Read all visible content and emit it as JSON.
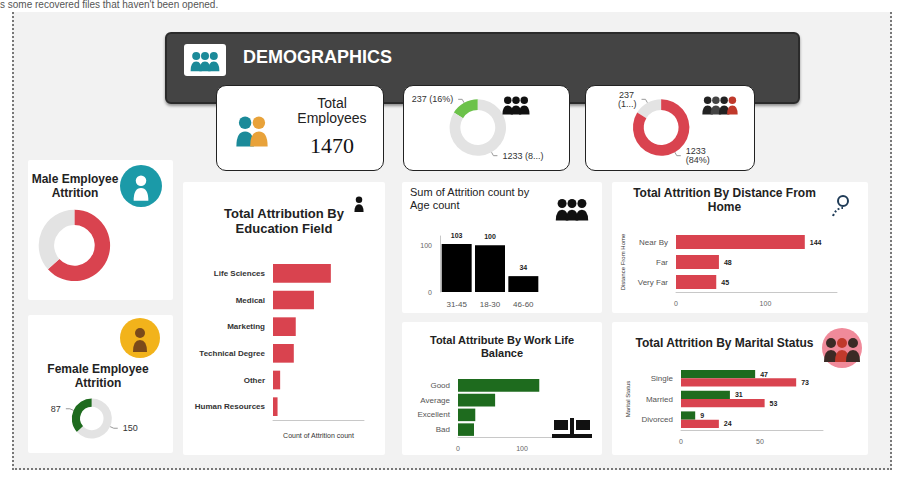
{
  "note": "s some recovered files that haven't been opened.",
  "header": {
    "title": "DEMOGRAPHICS"
  },
  "kpi": {
    "label": "Total Employees",
    "value": 1470
  },
  "chart_data": [
    {
      "type": "donut",
      "values": [
        237,
        1233
      ],
      "value_labels": [
        "237 (16%)",
        "1233 (8...)"
      ],
      "colors": [
        "#6cc24a",
        "#e3e3e3"
      ],
      "data_labels": true
    },
    {
      "type": "donut",
      "values": [
        237,
        1233
      ],
      "value_labels": [
        "237 (1...)",
        "1233 (84%)"
      ],
      "colors": [
        "#e3e3e3",
        "#d9434f"
      ],
      "data_labels": true
    },
    {
      "type": "donut",
      "title": "Male Employee Attrition",
      "values": [
        150,
        87
      ],
      "colors": [
        "#d9434f",
        "#e3e3e3"
      ],
      "data_labels": false
    },
    {
      "type": "donut",
      "title": "Female Employee Attrition",
      "values": [
        87,
        150
      ],
      "colors": [
        "#1e6b1e",
        "#e3e3e3"
      ],
      "data_labels": true
    },
    {
      "type": "bar",
      "orientation": "horizontal",
      "title": "Total Attribution By Education Field",
      "xlabel": "Count of Attrition count",
      "categories": [
        "Life Sciences",
        "Medical",
        "Marketing",
        "Technical Degree",
        "Other",
        "Human Resources"
      ],
      "values": [
        89,
        63,
        35,
        32,
        11,
        7
      ],
      "color": "#d9434f",
      "xlim": [
        0,
        140
      ],
      "tick_labels": "y",
      "grid": false,
      "data_labels": false
    },
    {
      "type": "bar",
      "title": "Sum of Attrition count by Age count",
      "categories": [
        "31-45",
        "18-30",
        "46-60"
      ],
      "values": [
        103,
        100,
        34
      ],
      "color": "#000000",
      "ylim": [
        0,
        120
      ],
      "yticks": [
        0,
        100
      ],
      "grid": false,
      "data_labels": true
    },
    {
      "type": "bar",
      "orientation": "horizontal",
      "title": "Total Attrition By Distance From Home",
      "ylabel": "Distance From Home",
      "categories": [
        "Near By",
        "Far",
        "Very Far"
      ],
      "values": [
        144,
        48,
        45
      ],
      "color": "#d9434f",
      "xlim": [
        0,
        180
      ],
      "xticks": [
        0,
        100
      ],
      "grid": false,
      "data_labels": true
    },
    {
      "type": "bar",
      "orientation": "horizontal",
      "title": "Total Attribute By Work Life Balance",
      "categories": [
        "Good",
        "Average",
        "Excellent",
        "Bad"
      ],
      "values": [
        127,
        58,
        27,
        25
      ],
      "color": "#1e6b1e",
      "xlim": [
        0,
        200
      ],
      "xticks": [
        0,
        100
      ],
      "grid": false,
      "data_labels": false
    },
    {
      "type": "bar",
      "orientation": "horizontal",
      "title": "Total Attrition By Marital Status",
      "ylabel": "Marital Status",
      "categories": [
        "Single",
        "Married",
        "Divorced"
      ],
      "series": [
        {
          "color": "#1e6b1e",
          "values": [
            47,
            31,
            9
          ]
        },
        {
          "color": "#d9434f",
          "values": [
            73,
            53,
            24
          ]
        }
      ],
      "xlim": [
        0,
        90
      ],
      "xticks": [
        0,
        50
      ],
      "grid": false,
      "data_labels": true
    }
  ]
}
